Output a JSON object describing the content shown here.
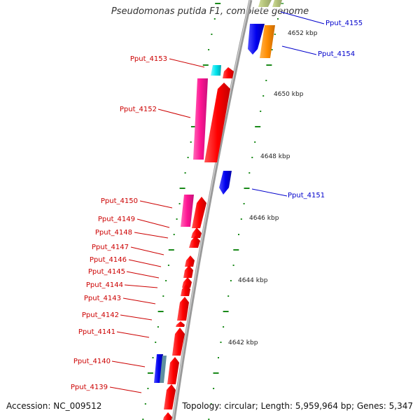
{
  "title": "Pseudomonas putida F1, complete genome",
  "footer": {
    "accession": "Accession: NC_009512",
    "topology": "Topology: circular; Length: 5,959,964 bp; Genes: 5,347"
  },
  "colors": {
    "backbone": "#999999",
    "tick": "#1a8a1a",
    "left_label": "#cc0000",
    "right_label": "#0000cc",
    "red_gene": "#ff0000",
    "magenta_gene": "#ff1493",
    "blue_gene": "#0000ee",
    "cyan_gene": "#00e5ee",
    "orange_gene": "#ff8c00",
    "olive_gene": "#8aa030",
    "teal_gene": "#5f8f9f"
  },
  "scale_labels": [
    "4652 kbp",
    "4650 kbp",
    "4648 kbp",
    "4646 kbp",
    "4644 kbp",
    "4642 kbp"
  ],
  "left_gene_labels": [
    "Pput_4153",
    "Pput_4152",
    "Pput_4150",
    "Pput_4149",
    "Pput_4148",
    "Pput_4147",
    "Pput_4146",
    "Pput_4145",
    "Pput_4144",
    "Pput_4143",
    "Pput_4142",
    "Pput_4141",
    "Pput_4140",
    "Pput_4139"
  ],
  "right_gene_labels": [
    "Pput_4155",
    "Pput_4154",
    "Pput_4151"
  ]
}
